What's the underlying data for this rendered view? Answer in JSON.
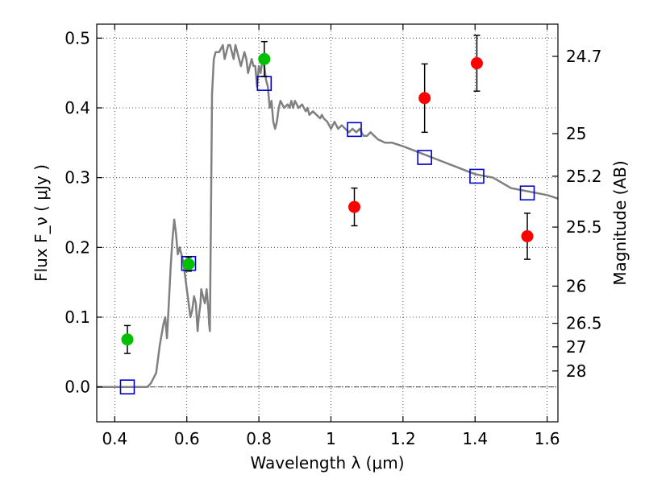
{
  "chart_data": {
    "type": "scatter",
    "xlabel": "Wavelength  λ (μm)",
    "ylabel": "Flux  F_ν  ( μJy )",
    "y2label": "Magnitude (AB)",
    "xlim": [
      0.35,
      1.63
    ],
    "ylim": [
      -0.05,
      0.52
    ],
    "x_ticks": [
      {
        "value": 0.4,
        "label": "0.4"
      },
      {
        "value": 0.6,
        "label": "0.6"
      },
      {
        "value": 0.8,
        "label": "0.8"
      },
      {
        "value": 1.0,
        "label": "1"
      },
      {
        "value": 1.2,
        "label": "1.2"
      },
      {
        "value": 1.4,
        "label": "1.4"
      },
      {
        "value": 1.6,
        "label": "1.6"
      }
    ],
    "y_ticks": [
      {
        "value": 0.0,
        "label": "0.0"
      },
      {
        "value": 0.1,
        "label": "0.1"
      },
      {
        "value": 0.2,
        "label": "0.2"
      },
      {
        "value": 0.3,
        "label": "0.3"
      },
      {
        "value": 0.4,
        "label": "0.4"
      },
      {
        "value": 0.5,
        "label": "0.5"
      }
    ],
    "y2_ticks": [
      {
        "flux": 0.4738,
        "label": "24.7"
      },
      {
        "flux": 0.3631,
        "label": "25"
      },
      {
        "flux": 0.302,
        "label": "25.2"
      },
      {
        "flux": 0.2291,
        "label": "25.5"
      },
      {
        "flux": 0.1445,
        "label": "26"
      },
      {
        "flux": 0.0912,
        "label": "26.5"
      },
      {
        "flux": 0.0575,
        "label": "27"
      },
      {
        "flux": 0.0229,
        "label": "28"
      }
    ],
    "zero_line": 0.0,
    "colors": {
      "template": "#808080",
      "green_points": "#00c000",
      "red_points": "#ff0000",
      "model_boxes": "#0000cc",
      "errorbar": "#000000"
    },
    "series": [
      {
        "name": "template_spectrum",
        "type": "line",
        "x": [
          0.35,
          0.4,
          0.45,
          0.49,
          0.5,
          0.515,
          0.525,
          0.535,
          0.54,
          0.545,
          0.55,
          0.555,
          0.56,
          0.565,
          0.57,
          0.575,
          0.58,
          0.585,
          0.59,
          0.595,
          0.6,
          0.605,
          0.61,
          0.615,
          0.62,
          0.625,
          0.63,
          0.633,
          0.638,
          0.64,
          0.645,
          0.65,
          0.655,
          0.66,
          0.662,
          0.664,
          0.667,
          0.67,
          0.675,
          0.68,
          0.69,
          0.7,
          0.705,
          0.71,
          0.715,
          0.72,
          0.725,
          0.73,
          0.735,
          0.74,
          0.745,
          0.75,
          0.755,
          0.76,
          0.765,
          0.77,
          0.775,
          0.78,
          0.785,
          0.79,
          0.795,
          0.8,
          0.805,
          0.81,
          0.815,
          0.82,
          0.825,
          0.83,
          0.835,
          0.84,
          0.845,
          0.85,
          0.855,
          0.86,
          0.87,
          0.88,
          0.885,
          0.89,
          0.895,
          0.9,
          0.91,
          0.92,
          0.93,
          0.935,
          0.94,
          0.95,
          0.96,
          0.97,
          0.975,
          0.98,
          0.99,
          1.0,
          1.01,
          1.02,
          1.03,
          1.04,
          1.05,
          1.06,
          1.07,
          1.08,
          1.09,
          1.1,
          1.11,
          1.12,
          1.13,
          1.15,
          1.17,
          1.2,
          1.25,
          1.3,
          1.35,
          1.4,
          1.45,
          1.5,
          1.55,
          1.6,
          1.63
        ],
        "y": [
          0.0,
          0.0,
          0.0,
          0.0,
          0.005,
          0.02,
          0.06,
          0.09,
          0.1,
          0.07,
          0.12,
          0.17,
          0.21,
          0.24,
          0.22,
          0.19,
          0.2,
          0.19,
          0.18,
          0.16,
          0.14,
          0.12,
          0.1,
          0.11,
          0.13,
          0.12,
          0.08,
          0.1,
          0.12,
          0.14,
          0.13,
          0.12,
          0.14,
          0.11,
          0.09,
          0.08,
          0.25,
          0.42,
          0.47,
          0.48,
          0.48,
          0.49,
          0.47,
          0.48,
          0.49,
          0.49,
          0.48,
          0.47,
          0.49,
          0.48,
          0.47,
          0.46,
          0.47,
          0.48,
          0.47,
          0.45,
          0.46,
          0.47,
          0.46,
          0.46,
          0.43,
          0.46,
          0.45,
          0.47,
          0.46,
          0.44,
          0.43,
          0.4,
          0.41,
          0.38,
          0.37,
          0.38,
          0.4,
          0.41,
          0.4,
          0.405,
          0.4,
          0.41,
          0.4,
          0.41,
          0.4,
          0.405,
          0.395,
          0.4,
          0.39,
          0.395,
          0.39,
          0.385,
          0.39,
          0.385,
          0.38,
          0.37,
          0.38,
          0.37,
          0.375,
          0.37,
          0.365,
          0.37,
          0.365,
          0.37,
          0.36,
          0.36,
          0.365,
          0.36,
          0.355,
          0.35,
          0.35,
          0.345,
          0.335,
          0.325,
          0.315,
          0.305,
          0.3,
          0.285,
          0.28,
          0.275,
          0.27
        ]
      },
      {
        "name": "observed_green",
        "type": "scatter_errorbar",
        "x": [
          0.435,
          0.605,
          0.815
        ],
        "y": [
          0.068,
          0.176,
          0.47
        ],
        "yerr": [
          0.02,
          0.01,
          0.025
        ]
      },
      {
        "name": "observed_red",
        "type": "scatter_errorbar",
        "x": [
          1.065,
          1.26,
          1.405,
          1.545
        ],
        "y": [
          0.258,
          0.414,
          0.464,
          0.216
        ],
        "yerr": [
          0.027,
          0.049,
          0.04,
          0.033
        ]
      },
      {
        "name": "model_boxes",
        "type": "open_square",
        "x": [
          0.435,
          0.605,
          0.815,
          1.065,
          1.26,
          1.405,
          1.545
        ],
        "y": [
          0.0,
          0.177,
          0.435,
          0.369,
          0.329,
          0.302,
          0.278
        ]
      }
    ]
  }
}
